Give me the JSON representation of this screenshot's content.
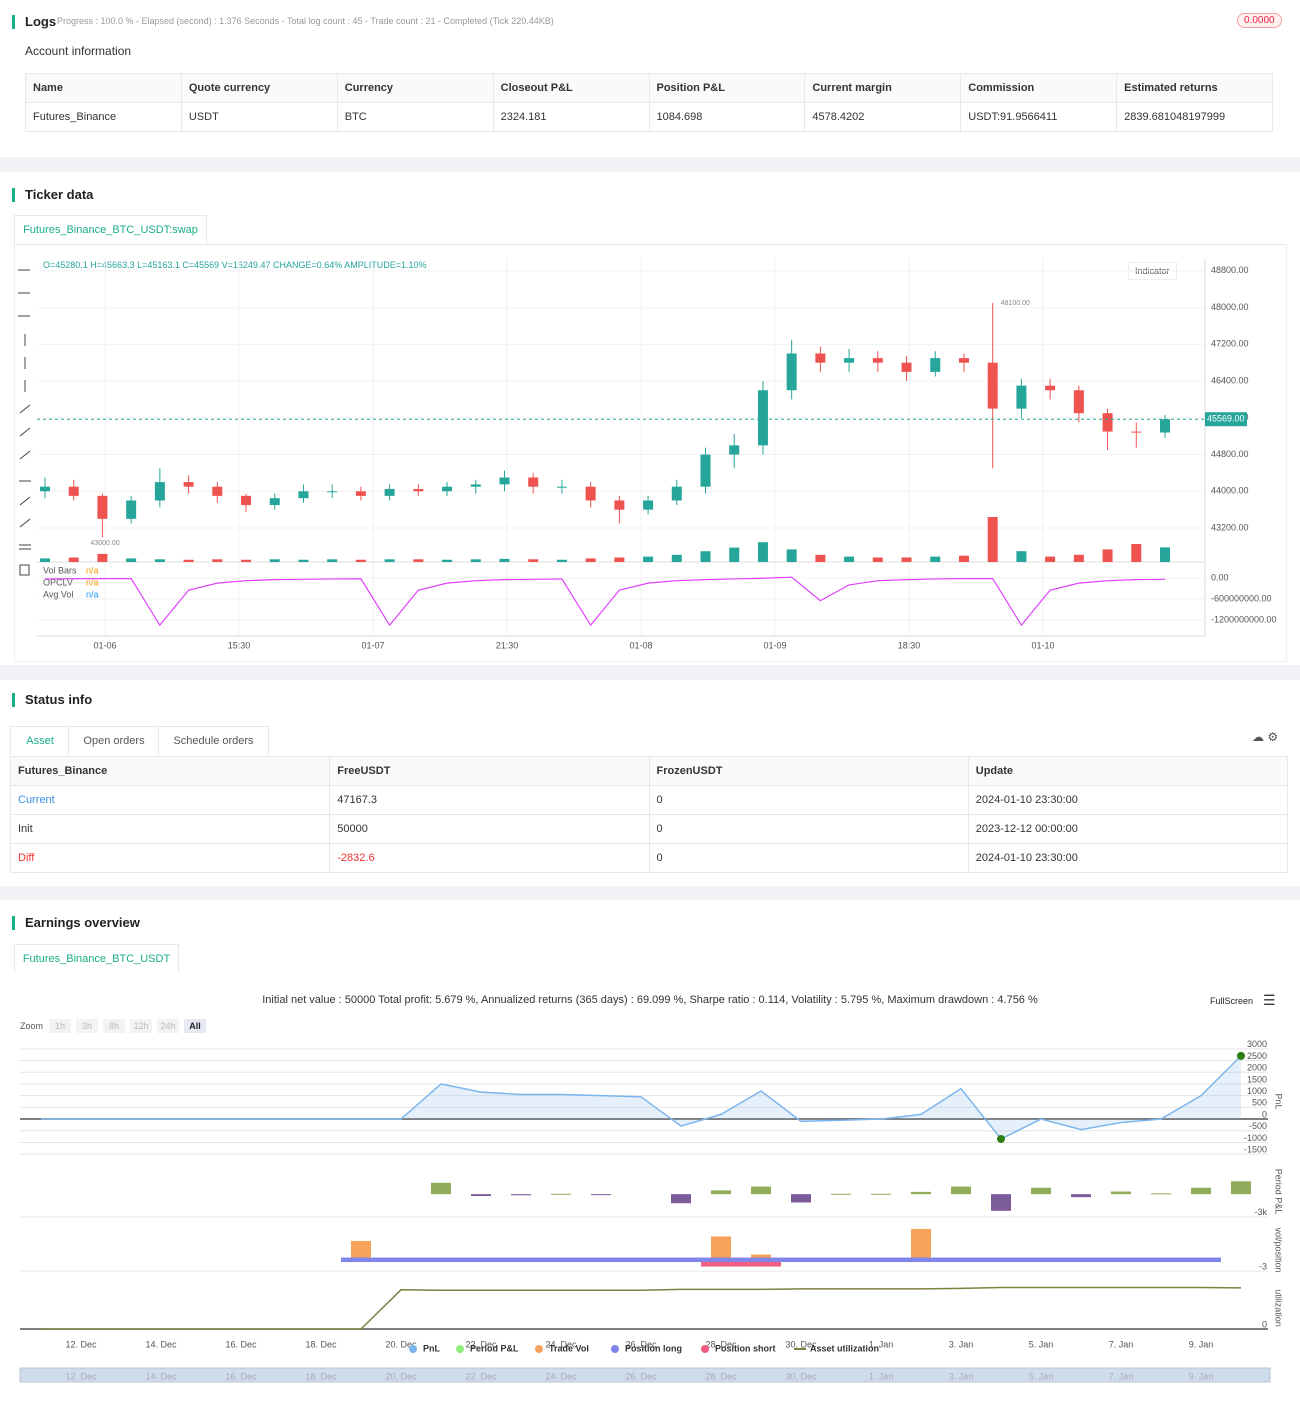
{
  "logs": {
    "title": "Logs",
    "progress": "Progress : 100.0 % - Elapsed (second) : 1.376  Seconds - Total log count : 45 - Trade count : 21 - Completed (Tick 220.44KB)",
    "badge": "0.0000",
    "account_title": "Account information",
    "table": {
      "headers": [
        "Name",
        "Quote currency",
        "Currency",
        "Closeout P&L",
        "Position P&L",
        "Current margin",
        "Commission",
        "Estimated returns"
      ],
      "rows": [
        [
          "Futures_Binance",
          "USDT",
          "BTC",
          "2324.181",
          "1084.698",
          "4578.4202",
          "USDT:91.9566411",
          "2839.681048197999"
        ]
      ]
    }
  },
  "ticker": {
    "title": "Ticker data",
    "tab": "Futures_Binance_BTC_USDT:swap",
    "ohlc_text": "O=45280.1 H=45663.3 L=45163.1 C=45569 V=16249.47 CHANGE=0.64% AMPLITUDE=1.10%",
    "indicator_button": "Indicator"
  },
  "status": {
    "title": "Status info",
    "tabs": [
      "Asset",
      "Open orders",
      "Schedule orders"
    ],
    "table": {
      "headers": [
        "Futures_Binance",
        "FreeUSDT",
        "FrozenUSDT",
        "Update"
      ],
      "rows": [
        [
          "Current",
          "47167.3",
          "0",
          "2024-01-10 23:30:00"
        ],
        [
          "Init",
          "50000",
          "0",
          "2023-12-12 00:00:00"
        ],
        [
          "Diff",
          "-2832.6",
          "0",
          "2024-01-10 23:30:00"
        ]
      ]
    }
  },
  "earnings": {
    "title": "Earnings overview",
    "tab": "Futures_Binance_BTC_USDT",
    "summary": "Initial net value : 50000 Total profit: 5.679 %, Annualized returns (365 days) : 69.099 %, Sharpe ratio : 0.114, Volatility : 5.795 %, Maximum drawdown : 4.756 %",
    "zoom_label": "Zoom",
    "zoom_buttons": [
      "1h",
      "3h",
      "8h",
      "12h",
      "24h",
      "All"
    ],
    "fullscreen": "FullScreen"
  },
  "chart_data": [
    {
      "type": "candlestick",
      "up_color": "#26a69a",
      "down_color": "#ef5350",
      "xticks": [
        "01-06",
        "15:30",
        "01-07",
        "21:30",
        "01-08",
        "01-09",
        "18:30",
        "01-10"
      ],
      "ylim": [
        42460,
        49080
      ],
      "yticks": [
        {
          "value": 43200,
          "label": "43200.00"
        },
        {
          "value": 44000,
          "label": "44000.00"
        },
        {
          "value": 44800,
          "label": "44800.00"
        },
        {
          "value": 45600,
          "label": "45600.00"
        },
        {
          "value": 46400,
          "label": "46400.00"
        },
        {
          "value": 47200,
          "label": "47200.00"
        },
        {
          "value": 48000,
          "label": "48000.00"
        },
        {
          "value": 48800,
          "label": "48800.00"
        }
      ],
      "open": [
        44000,
        44100,
        43900,
        43400,
        43800,
        44200,
        44100,
        43900,
        43700,
        43850,
        44000,
        44000,
        43900,
        44050,
        44000,
        44100,
        44150,
        44300,
        44100,
        44100,
        43800,
        43600,
        43800,
        44100,
        44800,
        45000,
        46200,
        47000,
        46800,
        46900,
        46800,
        46600,
        46900,
        46800,
        45800,
        46300,
        46200,
        45700,
        45300,
        45280.1
      ],
      "high": [
        44300,
        44250,
        43950,
        43900,
        44500,
        44350,
        44200,
        43950,
        43950,
        44150,
        44150,
        44100,
        44150,
        44150,
        44200,
        44250,
        44450,
        44400,
        44250,
        44200,
        43900,
        43900,
        44250,
        44950,
        45250,
        46400,
        47300,
        47150,
        47100,
        47050,
        46950,
        47050,
        47000,
        48100,
        46450,
        46450,
        46300,
        45800,
        45500,
        45663.3
      ],
      "low": [
        43850,
        43800,
        43000,
        43300,
        43650,
        43950,
        43750,
        43550,
        43600,
        43750,
        43850,
        43800,
        43800,
        43900,
        43900,
        43950,
        44000,
        43950,
        43950,
        43650,
        43300,
        43500,
        43700,
        43950,
        44500,
        44800,
        46000,
        46600,
        46600,
        46600,
        46400,
        46500,
        46600,
        44500,
        45600,
        46000,
        45500,
        44900,
        44950,
        45163.1
      ],
      "close": [
        44100,
        43900,
        43400,
        43800,
        44200,
        44100,
        43900,
        43700,
        43850,
        44000,
        44000,
        43900,
        44050,
        44000,
        44100,
        44150,
        44300,
        44100,
        44100,
        43800,
        43600,
        43800,
        44100,
        44800,
        45000,
        46200,
        47000,
        46800,
        46900,
        46800,
        46600,
        46900,
        46800,
        45800,
        46300,
        46200,
        45700,
        45300,
        45280.1,
        45569
      ],
      "volume": [
        4000,
        5000,
        9000,
        4000,
        3000,
        2500,
        3000,
        2500,
        3000,
        2500,
        3000,
        2500,
        3000,
        3000,
        2500,
        3000,
        3500,
        3000,
        2500,
        4000,
        5000,
        6000,
        8000,
        12000,
        16000,
        22000,
        14000,
        8000,
        6000,
        5000,
        5000,
        6000,
        7000,
        50000,
        12000,
        6000,
        8000,
        14000,
        20000,
        16249.47
      ],
      "last_price": {
        "value": 45569,
        "label": "45569.00"
      },
      "high_marker": {
        "value": 48100,
        "label": "48100.00"
      },
      "low_marker": {
        "value": 43000,
        "label": "43000.00"
      }
    },
    {
      "type": "line",
      "ylim": [
        -1660000000,
        340000000
      ],
      "yticks": [
        {
          "value": 0,
          "label": "0.00"
        },
        {
          "value": -600000000,
          "label": "-600000000.00"
        },
        {
          "value": -1200000000,
          "label": "-1200000000.00"
        }
      ],
      "legend": [
        {
          "name": "Vol Bars",
          "value_text": "n/a",
          "color": "#ff9800"
        },
        {
          "name": "OPCLV",
          "value_text": "n/a",
          "color": "#ff9800"
        },
        {
          "name": "Avg Vol",
          "value_text": "n/a",
          "color": "#2196f3"
        }
      ],
      "series": [
        {
          "name": "Avg Vol",
          "color": "#e040fb",
          "values": [
            -30000000,
            -25000000,
            -20000000,
            -20000000,
            -1350000000,
            -350000000,
            -150000000,
            -80000000,
            -50000000,
            -40000000,
            -30000000,
            -25000000,
            -1350000000,
            -350000000,
            -150000000,
            -80000000,
            -50000000,
            -40000000,
            -30000000,
            -1350000000,
            -350000000,
            -150000000,
            -80000000,
            -50000000,
            -30000000,
            -10000000,
            20000000,
            -650000000,
            -200000000,
            -80000000,
            -50000000,
            -30000000,
            -20000000,
            -20000000,
            -1350000000,
            -350000000,
            -150000000,
            -80000000,
            -50000000,
            -40000000
          ]
        }
      ]
    },
    {
      "type": "combo",
      "x": [
        "11. Dec",
        "12. Dec",
        "13. Dec",
        "14. Dec",
        "15. Dec",
        "16. Dec",
        "17. Dec",
        "18. Dec",
        "19. Dec",
        "20. Dec",
        "21. Dec",
        "22. Dec",
        "23. Dec",
        "24. Dec",
        "25. Dec",
        "26. Dec",
        "27. Dec",
        "28. Dec",
        "29. Dec",
        "30. Dec",
        "31. Dec",
        "1. Jan",
        "2. Jan",
        "3. Jan",
        "4. Jan",
        "5. Jan",
        "6. Jan",
        "7. Jan",
        "8. Jan",
        "9. Jan",
        "10. Jan"
      ],
      "xticks": [
        "12. Dec",
        "14. Dec",
        "16. Dec",
        "18. Dec",
        "20. Dec",
        "22. Dec",
        "24. Dec",
        "26. Dec",
        "28. Dec",
        "30. Dec",
        "1. Jan",
        "3. Jan",
        "5. Jan",
        "7. Jan",
        "9. Jan"
      ],
      "panes": [
        {
          "type": "area",
          "axis_label": "PnL",
          "ylim": [
            -1750,
            3250
          ],
          "yticks": [
            3000,
            2500,
            2000,
            1500,
            1000,
            500,
            0,
            -500,
            -1000,
            -1500
          ],
          "series": [
            {
              "name": "PnL",
              "color": "#7cb5ec",
              "values": [
                0,
                0,
                0,
                0,
                0,
                0,
                0,
                0,
                0,
                0,
                1500,
                1150,
                1050,
                1050,
                1000,
                950,
                -300,
                200,
                1200,
                -100,
                -50,
                0,
                200,
                1300,
                -850,
                0,
                -450,
                -150,
                0,
                1000,
                2700
              ]
            }
          ]
        },
        {
          "type": "bar",
          "axis_label": "Period P&L",
          "ylim": [
            -3150,
            3850
          ],
          "yticks": [
            {
              "value": -3000,
              "label": "-3k"
            }
          ],
          "series": [
            {
              "name": "Period P&L",
              "color": "#90ed7d",
              "positive_color": "#8fac5a",
              "negative_color": "#7c5c9a",
              "values": [
                null,
                null,
                null,
                null,
                null,
                null,
                null,
                null,
                null,
                null,
                1500,
                -250,
                -150,
                50,
                -50,
                null,
                -1200,
                500,
                1000,
                -1100,
                50,
                50,
                300,
                1000,
                -2200,
                850,
                -400,
                350,
                100,
                850,
                1700
              ]
            }
          ]
        },
        {
          "type": "bar",
          "axis_label": "vol/position",
          "ylim": [
            -4.3,
            12.3
          ],
          "yticks": [
            -3
          ],
          "series": [
            {
              "name": "Trade Vol",
              "color": "#f7a35c",
              "values": [
                null,
                null,
                null,
                null,
                null,
                null,
                null,
                null,
                7,
                null,
                null,
                null,
                null,
                null,
                null,
                null,
                null,
                8.5,
                2.5,
                null,
                null,
                null,
                11,
                null,
                null,
                null,
                null,
                null,
                null,
                null,
                null
              ]
            },
            {
              "name": "Position long",
              "color": "#8085e9",
              "values": [
                null,
                null,
                null,
                null,
                null,
                null,
                null,
                null,
                1.5,
                1.5,
                1.5,
                1.5,
                1.5,
                1.5,
                1.5,
                1.5,
                1.5,
                1.5,
                1.5,
                1.5,
                1.5,
                1.5,
                1.5,
                1.5,
                1.5,
                1.5,
                1.5,
                1.5,
                1.5,
                1.5,
                null
              ]
            },
            {
              "name": "Position short",
              "color": "#f15c80",
              "values": [
                null,
                null,
                null,
                null,
                null,
                null,
                null,
                null,
                null,
                null,
                null,
                null,
                null,
                null,
                null,
                null,
                null,
                -1.5,
                -1.5,
                null,
                null,
                null,
                null,
                null,
                null,
                null,
                null,
                null,
                null,
                null,
                null
              ]
            }
          ]
        },
        {
          "type": "line",
          "axis_label": "utilization",
          "ylim": [
            -0.15,
            1.05
          ],
          "yticks": [
            0
          ],
          "series": [
            {
              "name": "Asset utilization",
              "color": "#808040",
              "values": [
                0,
                0,
                0,
                0,
                0,
                0,
                0,
                0,
                0,
                0.84,
                0.83,
                0.83,
                0.83,
                0.83,
                0.83,
                0.83,
                0.85,
                0.85,
                0.85,
                0.86,
                0.86,
                0.86,
                0.86,
                0.87,
                0.89,
                0.89,
                0.89,
                0.89,
                0.89,
                0.89,
                0.88
              ]
            }
          ]
        }
      ]
    }
  ]
}
